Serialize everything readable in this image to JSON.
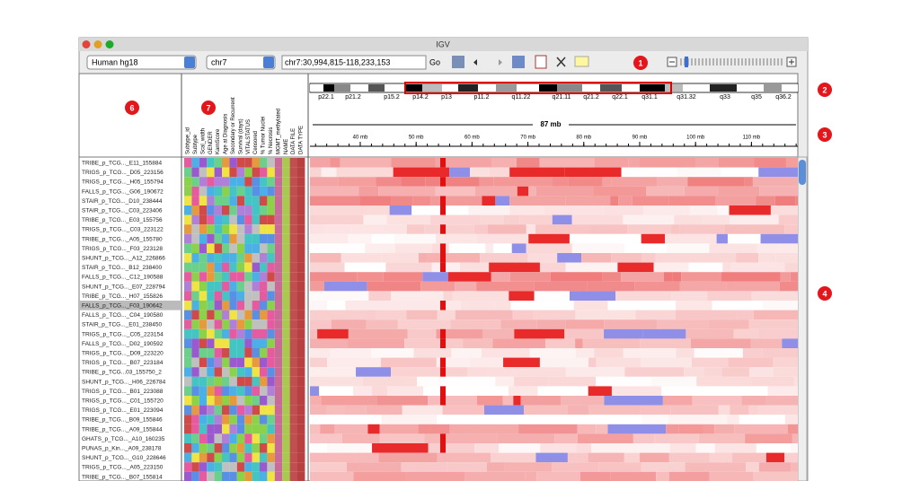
{
  "window": {
    "title": "IGV"
  },
  "toolbar": {
    "genome": "Human hg18",
    "chromosome": "chr7",
    "locus": "chr7:30,994,815-118,233,153",
    "go": "Go"
  },
  "callouts": [
    "1",
    "2",
    "3",
    "4",
    "6",
    "7"
  ],
  "cytoband": {
    "labels": [
      "p22.1",
      "p21.2",
      "p15.2",
      "p14.2",
      "p13",
      "p11.2",
      "q11.22",
      "q21.11",
      "q21.2",
      "q22.1",
      "q31.1",
      "q31.32",
      "q33",
      "q35",
      "q36.2"
    ]
  },
  "ruler": {
    "span": "87 mb",
    "ticks": [
      "40 mb",
      "50 mb",
      "60 mb",
      "70 mb",
      "80 mb",
      "90 mb",
      "100 mb",
      "110 mb"
    ]
  },
  "attributes": [
    "Subtype_id",
    "Subtype",
    "Scal_width",
    "GENDER",
    "KarnScore",
    "Age at Diagnosis",
    "Secondary or Recurrent",
    "Survival (days)",
    "VITALSTATUS",
    "Censored",
    "% Tumor Nuclei",
    "% Necrosis",
    "MGMT_methylated",
    "NAME",
    "DATA FILE",
    "DATA TYPE"
  ],
  "samples": [
    "TRIBE_p_TCG..._E11_155884",
    "TRIGS_p_TCG..._D05_223156",
    "TRIGS_p_TCG..._H05_155794",
    "FALLS_p_TCG..._G06_190672",
    "STAIR_p_TCG..._D10_238444",
    "STAIR_p_TCG..._C03_223406",
    "TRIBE_p_TCG..._E03_155756",
    "TRIGS_p_TCG..._C03_223122",
    "TRIBE_p_TCG..._A05_155780",
    "TRIGS_p_TCG..._F03_223128",
    "SHUNT_p_TCG..._A12_226866",
    "STAIR_p_TCG..._B12_238400",
    "FALLS_p_TCG..._C12_190588",
    "SHUNT_p_TCG..._E07_228794",
    "TRIBE_p_TCG..._H07_155826",
    "FALLS_p_TCG..._F03_190642",
    "FALLS_p_TCG..._C04_190580",
    "STAIR_p_TCG..._E01_238450",
    "TRIGS_p_TCG..._C05_223154",
    "FALLS_p_TCG..._D02_190592",
    "TRIGS_p_TCG..._D09_223220",
    "TRIGS_p_TCG..._B07_223184",
    "TRIBE_p_TCG...03_155750_2",
    "SHUNT_p_TCG..._H06_226784",
    "TRIGS_p_TCG..._B01_223088",
    "TRIGS_p_TCG..._C01_155720",
    "TRIGS_p_TCG..._E01_223094",
    "TRIBE_p_TCG..._B09_155846",
    "TRIBE_p_TCG..._A09_155844",
    "GHATS_p_TCG..._A10_160235",
    "PUNAS_p_Kin..._A09_238178",
    "SHUNT_p_TCG..._G10_228646",
    "TRIGS_p_TCG..._A05_223150",
    "TRIBE_p_TCG..._B07_155814"
  ]
}
